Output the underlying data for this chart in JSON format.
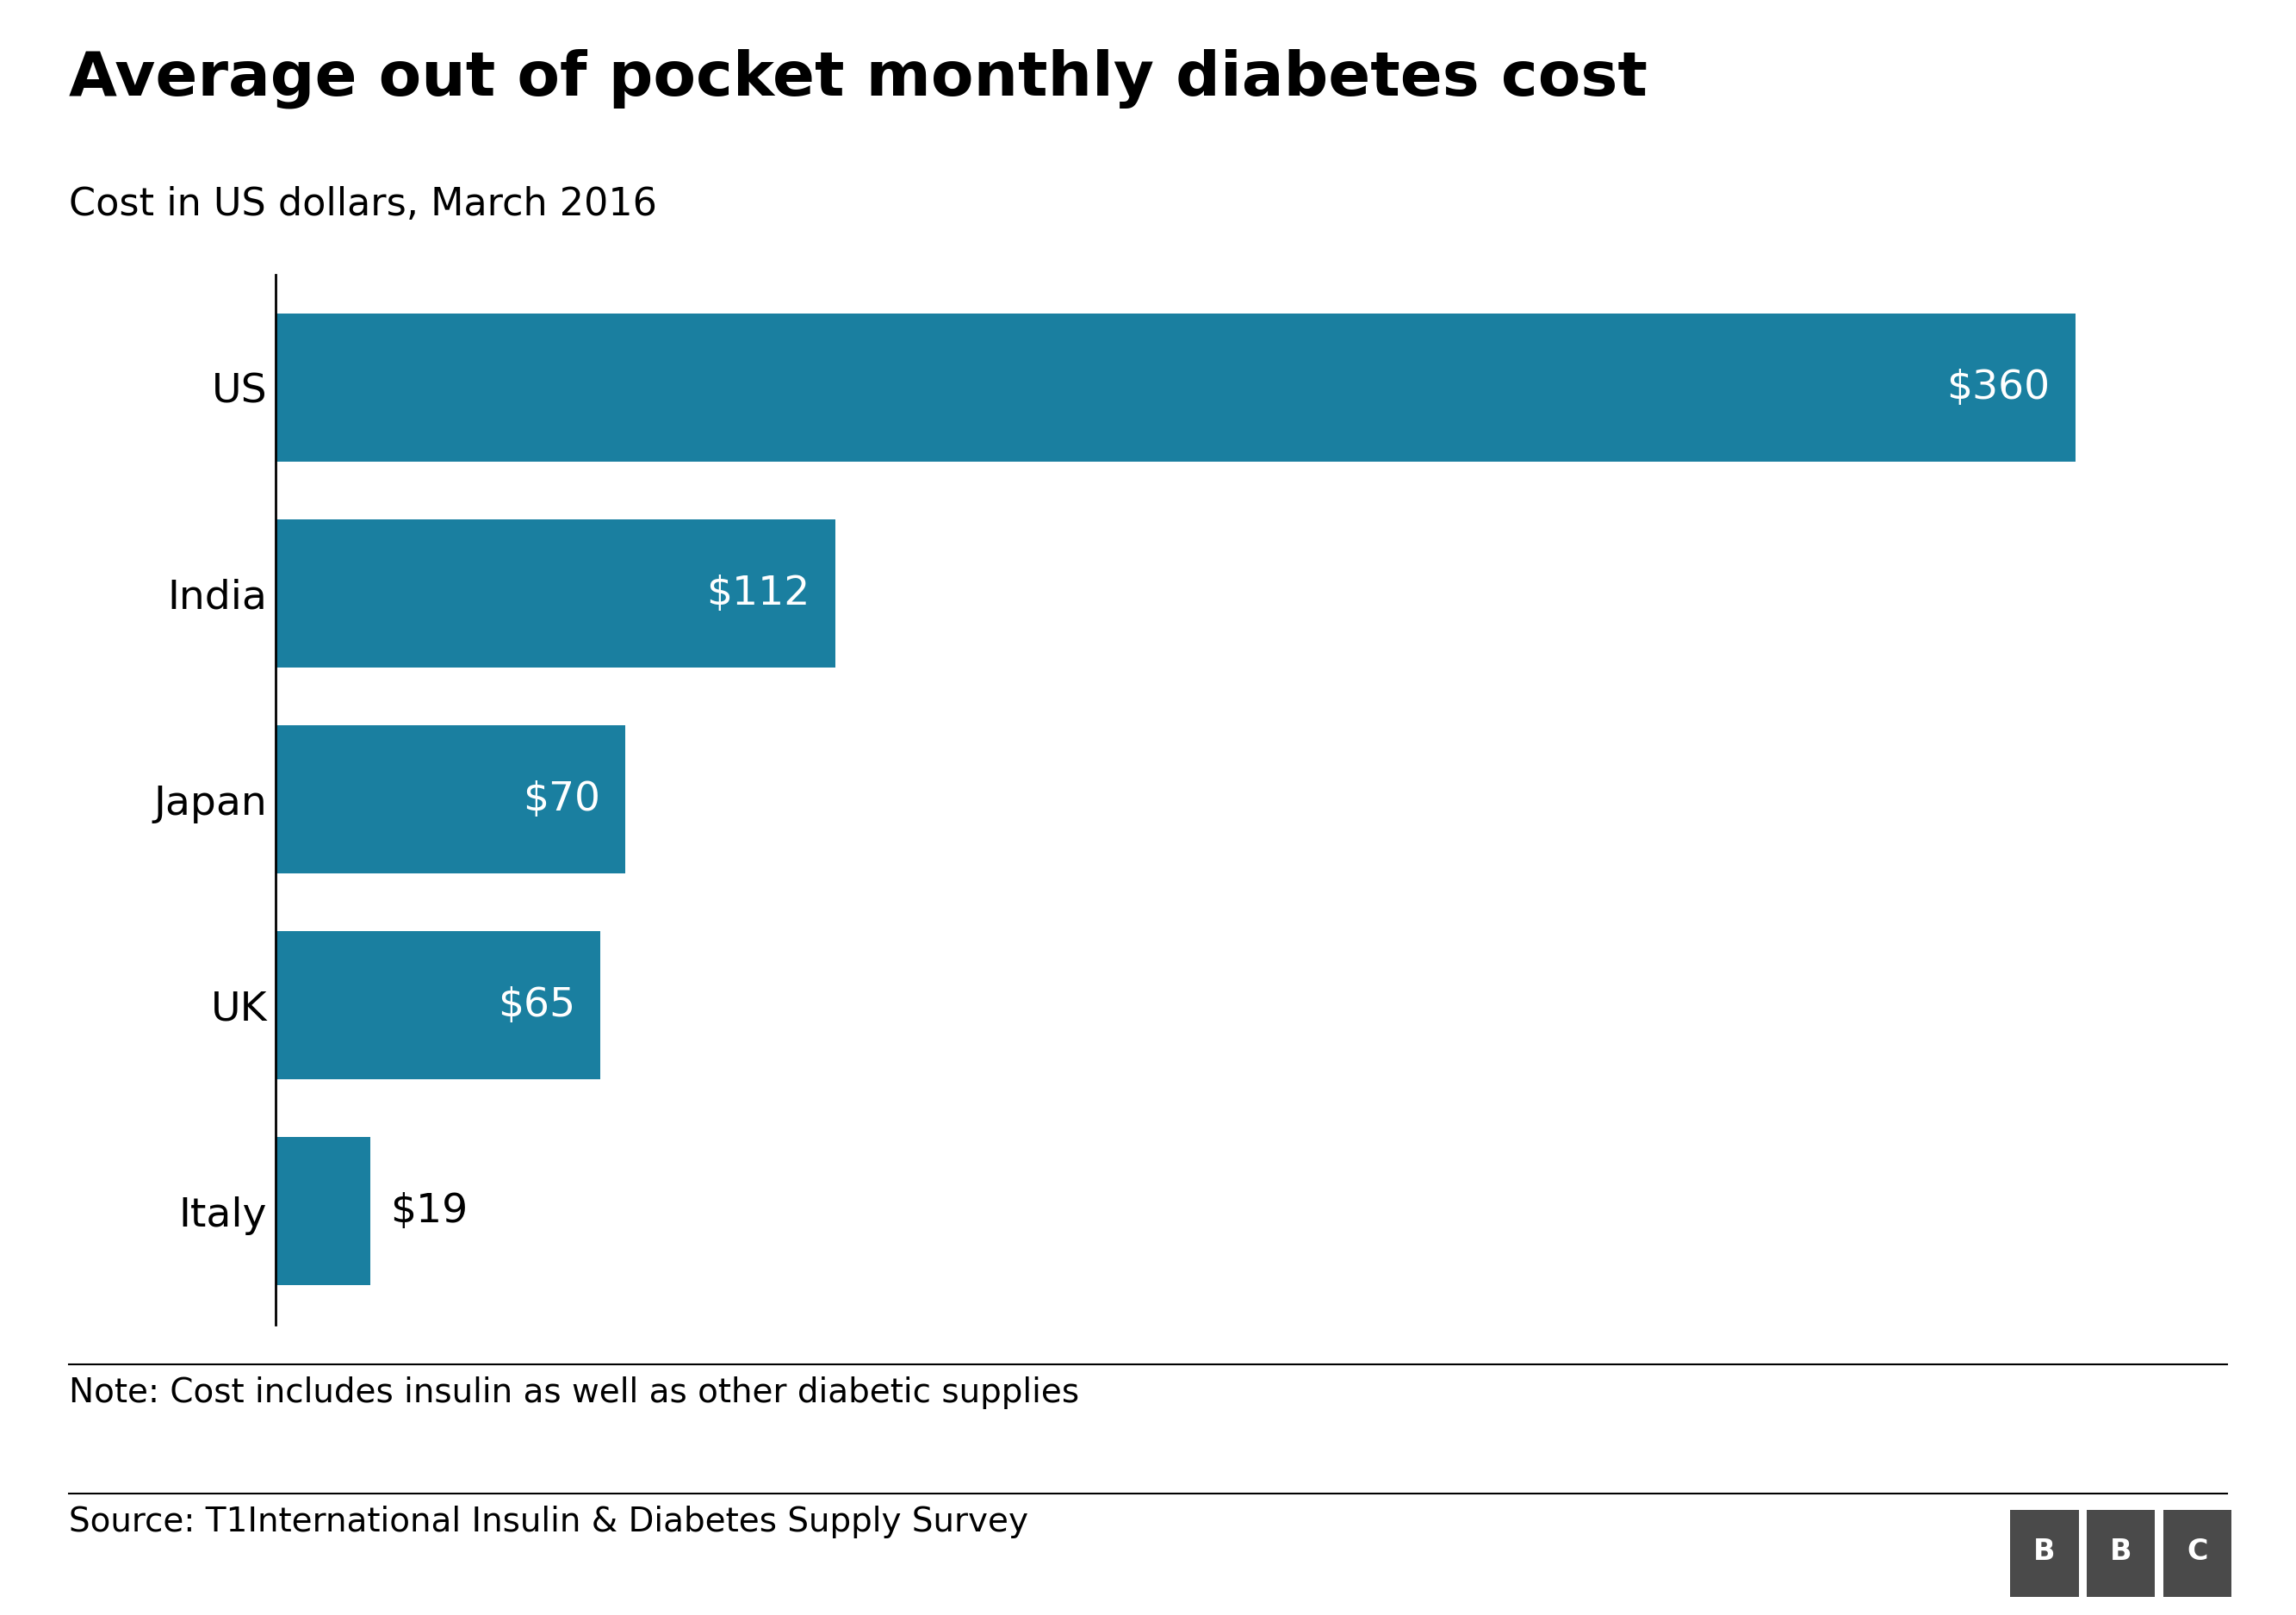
{
  "title": "Average out of pocket monthly diabetes cost",
  "subtitle": "Cost in US dollars, March 2016",
  "categories": [
    "US",
    "India",
    "Japan",
    "UK",
    "Italy"
  ],
  "values": [
    360,
    112,
    70,
    65,
    19
  ],
  "labels": [
    "$360",
    "$112",
    "$70",
    "$65",
    "$19"
  ],
  "bar_color": "#1a7fa0",
  "label_color_inside": "#ffffff",
  "label_color_outside": "#000000",
  "bg_color": "#ffffff",
  "note": "Note: Cost includes insulin as well as other diabetic supplies",
  "source": "Source: T1International Insulin & Diabetes Supply Survey",
  "title_fontsize": 52,
  "subtitle_fontsize": 32,
  "label_fontsize": 34,
  "category_fontsize": 34,
  "note_fontsize": 28,
  "xlim": [
    0,
    395
  ]
}
